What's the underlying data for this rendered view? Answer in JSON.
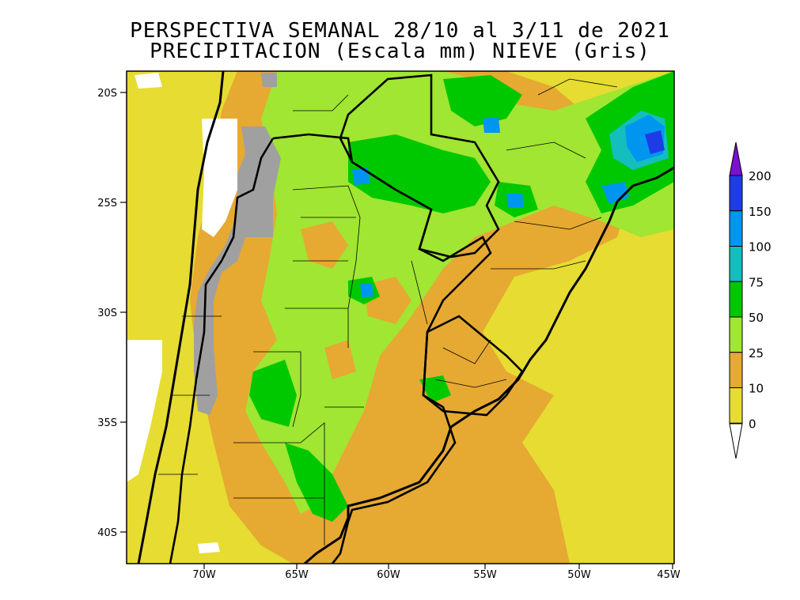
{
  "title": {
    "line1": "PERSPECTIVA SEMANAL  28/10 al 3/11 de 2021",
    "line2": "PRECIPITACION (Escala mm) NIEVE (Gris)"
  },
  "axes": {
    "lat_labels": [
      "20S",
      "25S",
      "30S",
      "35S",
      "40S"
    ],
    "lon_labels": [
      "70W",
      "65W",
      "60W",
      "55W",
      "50W",
      "45W"
    ]
  },
  "legend": {
    "levels": [
      {
        "label": "200",
        "color": "#7b10d0"
      },
      {
        "label": "150",
        "color": "#1e3ce6"
      },
      {
        "label": "100",
        "color": "#0096f0"
      },
      {
        "label": "75",
        "color": "#14bebe"
      },
      {
        "label": "50",
        "color": "#00c800"
      },
      {
        "label": "25",
        "color": "#a0e632"
      },
      {
        "label": "10",
        "color": "#e6a932"
      },
      {
        "label": "0",
        "color": "#e6dc32"
      }
    ],
    "below_min_color": "#ffffff",
    "snow_color": "#a0a0a0"
  }
}
